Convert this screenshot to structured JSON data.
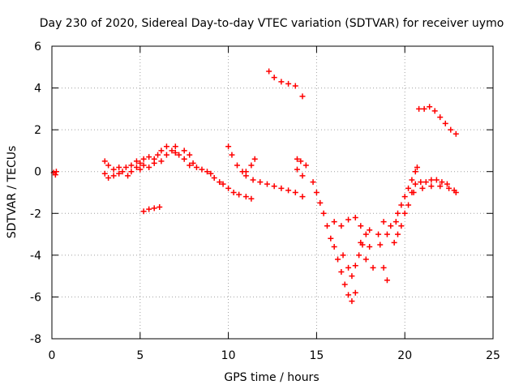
{
  "chart_data": {
    "type": "scatter",
    "title": "Day 230 of 2020, Sidereal Day-to-day VTEC variation (SDTVAR) for receiver uymo",
    "xlabel": "GPS time / hours",
    "ylabel": "SDTVAR / TECUs",
    "xlim": [
      0,
      25
    ],
    "ylim": [
      -8,
      6
    ],
    "x_ticks": [
      "0",
      "5",
      "10",
      "15",
      "20",
      "25"
    ],
    "y_ticks": [
      "-8",
      "-6",
      "-4",
      "-2",
      "0",
      "2",
      "4",
      "6"
    ],
    "grid": true,
    "marker": "+",
    "marker_color": "#ff0000",
    "series": [
      {
        "points": [
          [
            0.1,
            -0.05
          ],
          [
            0.2,
            -0.15
          ],
          [
            0.25,
            0.0
          ],
          [
            3.0,
            0.5
          ],
          [
            3.0,
            -0.1
          ],
          [
            3.2,
            0.3
          ],
          [
            3.2,
            -0.3
          ],
          [
            3.5,
            0.1
          ],
          [
            3.5,
            -0.2
          ],
          [
            3.8,
            0.2
          ],
          [
            3.8,
            -0.1
          ],
          [
            4.0,
            0.0
          ],
          [
            4.2,
            0.2
          ],
          [
            4.3,
            -0.2
          ],
          [
            4.5,
            0.3
          ],
          [
            4.5,
            0.0
          ],
          [
            4.8,
            0.5
          ],
          [
            4.8,
            0.2
          ],
          [
            5.0,
            0.4
          ],
          [
            5.0,
            0.1
          ],
          [
            5.2,
            0.6
          ],
          [
            5.2,
            0.3
          ],
          [
            5.5,
            0.7
          ],
          [
            5.5,
            0.2
          ],
          [
            5.8,
            0.6
          ],
          [
            5.8,
            0.4
          ],
          [
            6.0,
            0.8
          ],
          [
            6.2,
            1.0
          ],
          [
            6.2,
            0.5
          ],
          [
            6.5,
            1.2
          ],
          [
            6.5,
            0.8
          ],
          [
            6.8,
            1.0
          ],
          [
            7.0,
            1.2
          ],
          [
            7.0,
            0.9
          ],
          [
            7.2,
            0.8
          ],
          [
            7.5,
            1.0
          ],
          [
            7.5,
            0.6
          ],
          [
            7.8,
            0.8
          ],
          [
            7.8,
            0.3
          ],
          [
            8.0,
            0.4
          ],
          [
            8.2,
            0.2
          ],
          [
            8.5,
            0.1
          ],
          [
            8.8,
            0.0
          ],
          [
            9.0,
            -0.1
          ],
          [
            9.2,
            -0.3
          ],
          [
            9.5,
            -0.5
          ],
          [
            9.7,
            -0.6
          ],
          [
            10.0,
            -0.8
          ],
          [
            10.3,
            -1.0
          ],
          [
            10.6,
            -1.1
          ],
          [
            11.0,
            -1.2
          ],
          [
            11.3,
            -1.3
          ],
          [
            5.2,
            -1.9
          ],
          [
            5.5,
            -1.8
          ],
          [
            5.8,
            -1.75
          ],
          [
            6.1,
            -1.7
          ],
          [
            10.0,
            1.2
          ],
          [
            10.2,
            0.8
          ],
          [
            10.5,
            0.3
          ],
          [
            10.8,
            0.0
          ],
          [
            11.0,
            -0.2
          ],
          [
            11.4,
            -0.4
          ],
          [
            11.8,
            -0.5
          ],
          [
            12.2,
            -0.6
          ],
          [
            12.6,
            -0.7
          ],
          [
            13.0,
            -0.8
          ],
          [
            13.4,
            -0.9
          ],
          [
            13.8,
            -1.0
          ],
          [
            14.2,
            -1.2
          ],
          [
            11.0,
            0.0
          ],
          [
            11.3,
            0.3
          ],
          [
            11.5,
            0.6
          ],
          [
            12.3,
            4.8
          ],
          [
            12.6,
            4.5
          ],
          [
            13.0,
            4.3
          ],
          [
            13.4,
            4.2
          ],
          [
            13.8,
            4.1
          ],
          [
            14.2,
            3.6
          ],
          [
            13.9,
            0.6
          ],
          [
            14.1,
            0.5
          ],
          [
            13.9,
            0.1
          ],
          [
            14.2,
            -0.2
          ],
          [
            14.4,
            0.3
          ],
          [
            14.8,
            -0.5
          ],
          [
            15.0,
            -1.0
          ],
          [
            15.2,
            -1.5
          ],
          [
            15.4,
            -2.0
          ],
          [
            15.6,
            -2.6
          ],
          [
            15.8,
            -3.2
          ],
          [
            16.0,
            -3.6
          ],
          [
            16.2,
            -4.2
          ],
          [
            16.4,
            -4.8
          ],
          [
            16.6,
            -5.4
          ],
          [
            16.8,
            -5.9
          ],
          [
            17.0,
            -6.2
          ],
          [
            17.2,
            -5.8
          ],
          [
            16.0,
            -2.4
          ],
          [
            16.4,
            -2.6
          ],
          [
            16.8,
            -2.3
          ],
          [
            17.2,
            -2.2
          ],
          [
            17.5,
            -2.6
          ],
          [
            17.8,
            -3.0
          ],
          [
            18.0,
            -3.6
          ],
          [
            17.2,
            -4.5
          ],
          [
            17.4,
            -4.0
          ],
          [
            17.6,
            -3.5
          ],
          [
            17.8,
            -4.2
          ],
          [
            18.2,
            -4.6
          ],
          [
            18.5,
            -3.0
          ],
          [
            18.8,
            -2.4
          ],
          [
            16.5,
            -4.0
          ],
          [
            16.8,
            -4.6
          ],
          [
            17.0,
            -5.0
          ],
          [
            17.5,
            -3.4
          ],
          [
            18.0,
            -2.8
          ],
          [
            18.6,
            -3.5
          ],
          [
            18.8,
            -4.6
          ],
          [
            19.0,
            -5.2
          ],
          [
            19.0,
            -3.0
          ],
          [
            19.2,
            -2.6
          ],
          [
            19.4,
            -3.4
          ],
          [
            19.5,
            -2.4
          ],
          [
            19.6,
            -2.0
          ],
          [
            19.8,
            -1.6
          ],
          [
            20.0,
            -1.2
          ],
          [
            20.2,
            -0.8
          ],
          [
            20.4,
            -0.4
          ],
          [
            20.6,
            0.0
          ],
          [
            20.7,
            0.2
          ],
          [
            19.6,
            -3.0
          ],
          [
            19.8,
            -2.6
          ],
          [
            20.0,
            -2.0
          ],
          [
            20.2,
            -1.6
          ],
          [
            20.4,
            -1.0
          ],
          [
            20.6,
            -0.6
          ],
          [
            20.9,
            -0.5
          ],
          [
            21.2,
            -0.5
          ],
          [
            21.5,
            -0.4
          ],
          [
            21.8,
            -0.4
          ],
          [
            22.1,
            -0.5
          ],
          [
            22.4,
            -0.6
          ],
          [
            22.8,
            -0.9
          ],
          [
            20.5,
            -1.0
          ],
          [
            21.0,
            -0.8
          ],
          [
            21.5,
            -0.7
          ],
          [
            22.0,
            -0.7
          ],
          [
            22.5,
            -0.8
          ],
          [
            22.9,
            -1.0
          ],
          [
            20.8,
            3.0
          ],
          [
            21.1,
            3.0
          ],
          [
            21.4,
            3.1
          ],
          [
            21.7,
            2.9
          ],
          [
            22.0,
            2.6
          ],
          [
            22.3,
            2.3
          ],
          [
            22.6,
            2.0
          ],
          [
            22.9,
            1.8
          ]
        ]
      }
    ]
  }
}
